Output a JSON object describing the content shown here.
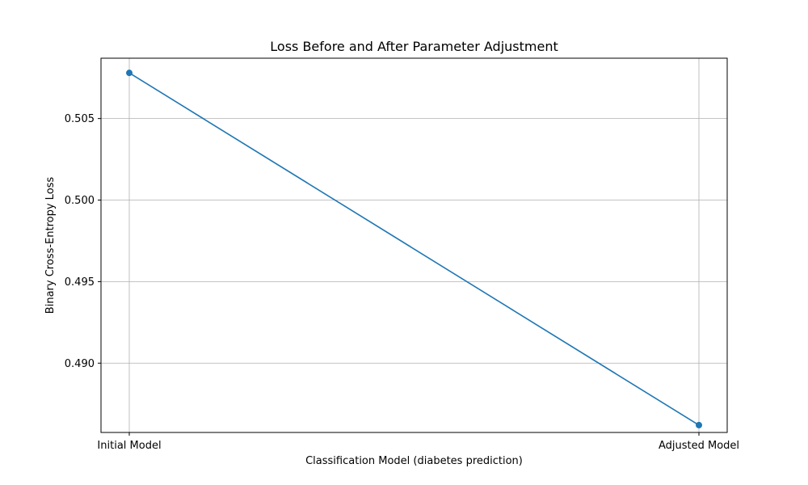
{
  "chart_data": {
    "type": "line",
    "title": "Loss Before and After Parameter Adjustment",
    "xlabel": "Classification Model (diabetes prediction)",
    "ylabel": "Binary Cross-Entropy Loss",
    "categories": [
      "Initial Model",
      "Adjusted Model"
    ],
    "values": [
      0.5078,
      0.4862
    ],
    "ylim": [
      0.48575,
      0.5087
    ],
    "yticks": [
      0.49,
      0.495,
      0.5,
      0.505
    ],
    "ytick_labels": [
      "0.490",
      "0.495",
      "0.500",
      "0.505"
    ],
    "grid": true,
    "line_color": "#1f77b4",
    "grid_color": "#b0b0b0"
  }
}
